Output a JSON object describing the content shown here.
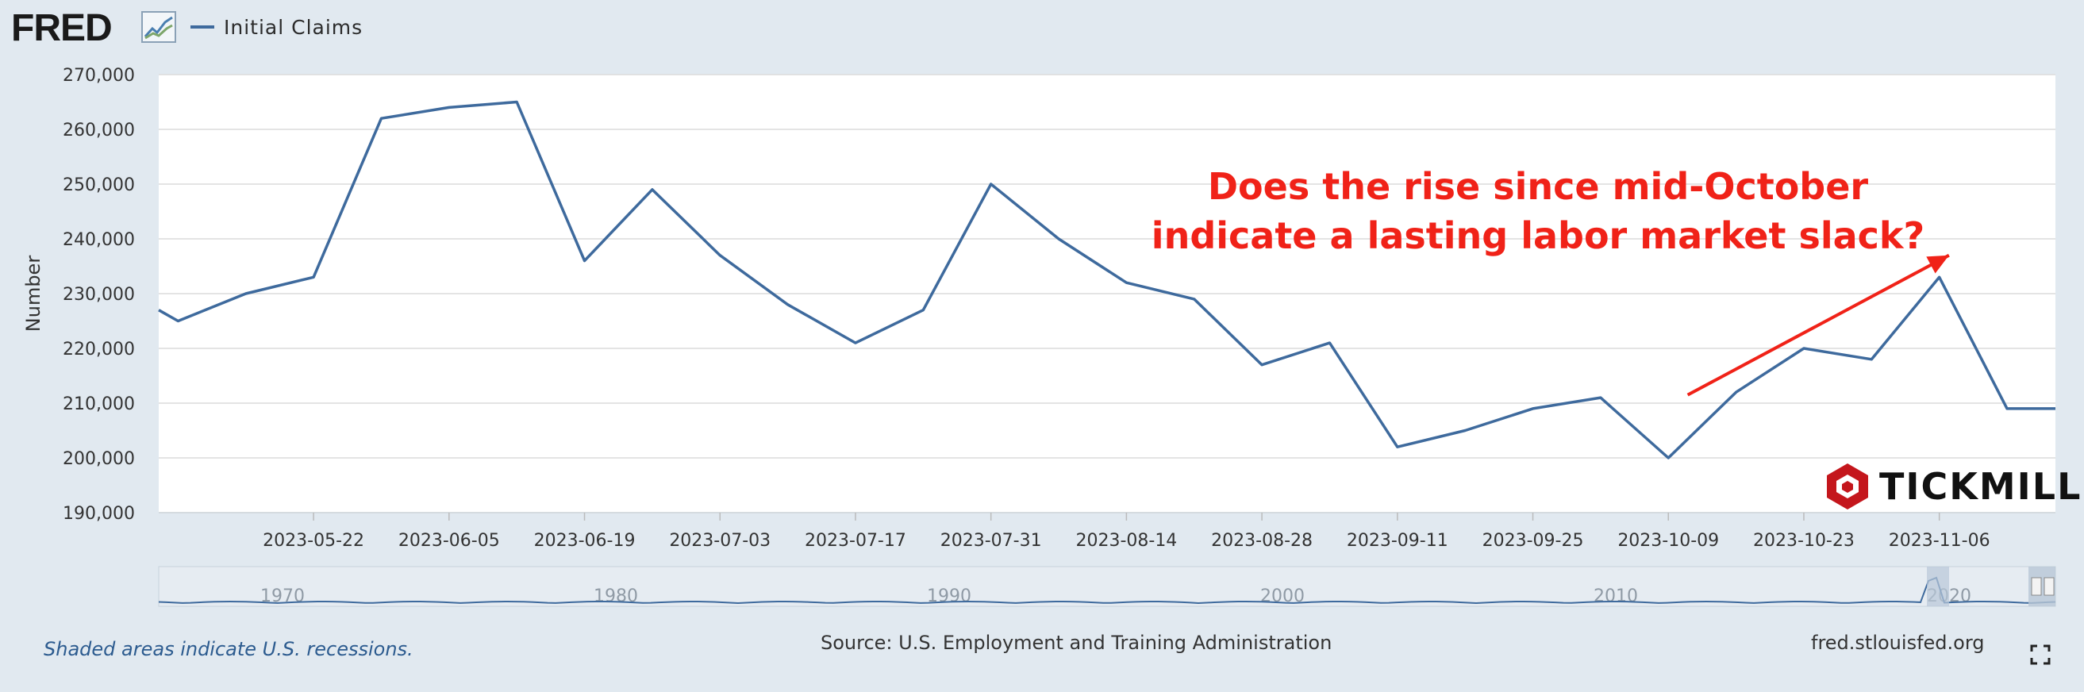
{
  "header": {
    "logo_text": "FRED",
    "logo_icon": "line-chart-icon",
    "legend_label": "Initial Claims",
    "series_color": "#3e6a9d"
  },
  "annotation": {
    "line1": "Does the rise since mid-October",
    "line2": "indicate a lasting labor market slack?",
    "color": "#f02218"
  },
  "watermark": {
    "brand": "TICKMILL",
    "color": "#c4161c"
  },
  "footer": {
    "recessions_note": "Shaded areas indicate U.S. recessions.",
    "source": "Source: U.S. Employment and Training Administration",
    "url": "fred.stlouisfed.org"
  },
  "chart_data": {
    "type": "line",
    "ylabel": "Number",
    "ylim": [
      190000,
      270000
    ],
    "yticks": [
      190000,
      200000,
      210000,
      220000,
      230000,
      240000,
      250000,
      260000,
      270000
    ],
    "ytick_labels": [
      "190,000",
      "200,000",
      "210,000",
      "220,000",
      "230,000",
      "240,000",
      "250,000",
      "260,000",
      "270,000"
    ],
    "xlim": [
      "2023-05-06",
      "2023-11-18"
    ],
    "xticks": [
      "2023-05-22",
      "2023-06-05",
      "2023-06-19",
      "2023-07-03",
      "2023-07-17",
      "2023-07-31",
      "2023-08-14",
      "2023-08-28",
      "2023-09-11",
      "2023-09-25",
      "2023-10-09",
      "2023-10-23",
      "2023-11-06"
    ],
    "grid": true,
    "series": [
      {
        "name": "Initial Claims",
        "color": "#3e6a9d",
        "x": [
          "2023-05-06",
          "2023-05-08",
          "2023-05-15",
          "2023-05-22",
          "2023-05-29",
          "2023-06-05",
          "2023-06-12",
          "2023-06-19",
          "2023-06-26",
          "2023-07-03",
          "2023-07-10",
          "2023-07-17",
          "2023-07-24",
          "2023-07-31",
          "2023-08-07",
          "2023-08-14",
          "2023-08-21",
          "2023-08-28",
          "2023-09-04",
          "2023-09-11",
          "2023-09-18",
          "2023-09-25",
          "2023-10-02",
          "2023-10-09",
          "2023-10-16",
          "2023-10-23",
          "2023-10-30",
          "2023-11-06",
          "2023-11-13",
          "2023-11-18"
        ],
        "values": [
          227000,
          225000,
          230000,
          233000,
          262000,
          264000,
          265000,
          236000,
          249000,
          237000,
          228000,
          221000,
          227000,
          250000,
          240000,
          232000,
          229000,
          217000,
          221000,
          202000,
          205000,
          209000,
          211000,
          200000,
          212000,
          220000,
          218000,
          233000,
          209000,
          209000
        ]
      }
    ],
    "annotation_arrow": {
      "from": [
        "2023-10-11",
        211500
      ],
      "to": [
        "2023-11-07",
        237000
      ]
    },
    "navigator": {
      "labels": [
        "1970",
        "1980",
        "1990",
        "2000",
        "2010",
        "2020"
      ],
      "recession_shading": "2020"
    }
  }
}
